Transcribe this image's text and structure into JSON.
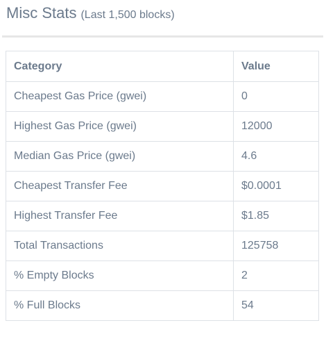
{
  "header": {
    "title": "Misc Stats",
    "subtitle": "(Last 1,500 blocks)"
  },
  "table": {
    "columns": [
      "Category",
      "Value"
    ],
    "rows": [
      {
        "category": "Cheapest Gas Price (gwei)",
        "value": "0"
      },
      {
        "category": "Highest Gas Price (gwei)",
        "value": "12000"
      },
      {
        "category": "Median Gas Price (gwei)",
        "value": "4.6"
      },
      {
        "category": "Cheapest Transfer Fee",
        "value": "$0.0001"
      },
      {
        "category": "Highest Transfer Fee",
        "value": "$1.85"
      },
      {
        "category": "Total Transactions",
        "value": "125758"
      },
      {
        "category": "% Empty Blocks",
        "value": "2"
      },
      {
        "category": "% Full Blocks",
        "value": "54"
      }
    ]
  }
}
